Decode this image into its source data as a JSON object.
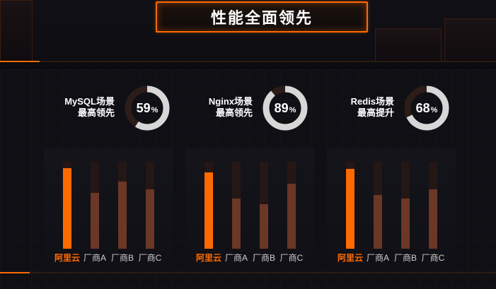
{
  "title": "性能全面领先",
  "metrics": [
    {
      "label": "MySQL场景\n最高领先",
      "value": "59",
      "unit": "%",
      "fraction": 0.59
    },
    {
      "label": "Nginx场景\n最高领先",
      "value": "89",
      "unit": "%",
      "fraction": 0.89
    },
    {
      "label": "Redis场景\n最高提升",
      "value": "68",
      "unit": "%",
      "fraction": 0.68
    }
  ],
  "colors": {
    "accent": "#ff6a00",
    "bar_other": "#6b3726",
    "bar_track": "#251715",
    "ring_track": "#2c1d18",
    "ring_fill": "#d7d7d7"
  },
  "chart_data": [
    {
      "type": "bar",
      "categories": [
        "阿里云",
        "厂商A",
        "厂商B",
        "厂商C"
      ],
      "values": [
        0.93,
        0.64,
        0.77,
        0.68
      ],
      "ylim": [
        0,
        1
      ]
    },
    {
      "type": "bar",
      "categories": [
        "阿里云",
        "厂商A",
        "厂商B",
        "厂商C"
      ],
      "values": [
        0.88,
        0.58,
        0.51,
        0.75
      ],
      "ylim": [
        0,
        1
      ]
    },
    {
      "type": "bar",
      "categories": [
        "阿里云",
        "厂商A",
        "厂商B",
        "厂商C"
      ],
      "values": [
        0.92,
        0.62,
        0.58,
        0.68
      ],
      "ylim": [
        0,
        1
      ]
    }
  ]
}
